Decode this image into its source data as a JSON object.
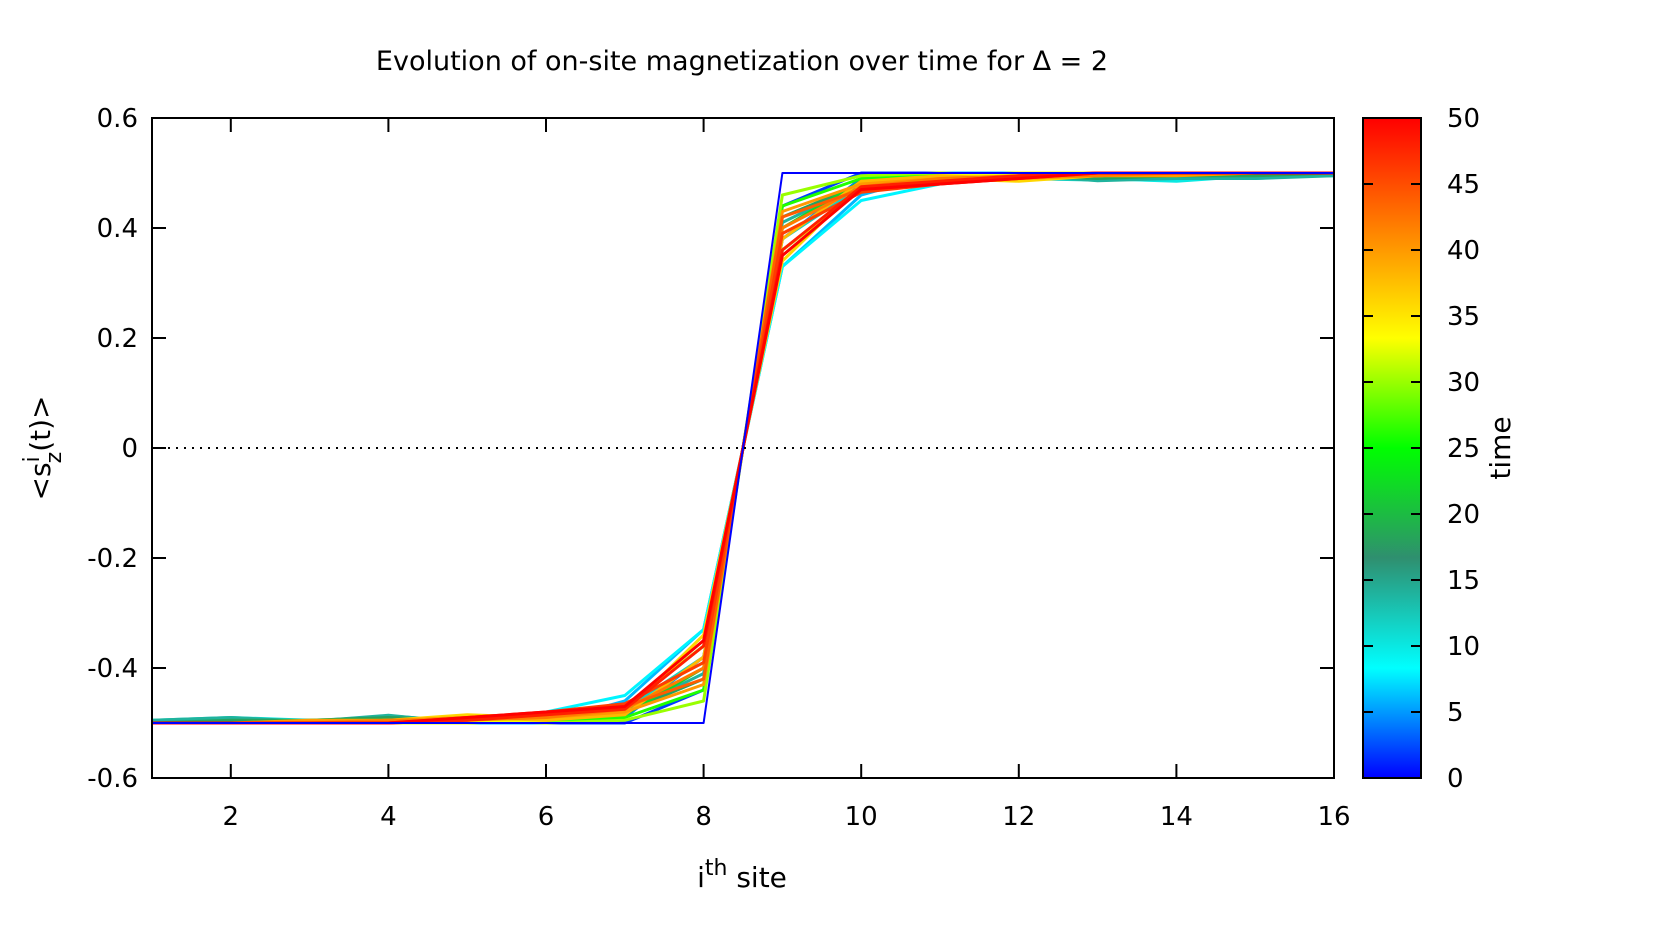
{
  "chart_data": {
    "type": "line",
    "title": "Evolution of on-site magnetization over time for Δ = 2",
    "xlabel": {
      "base": "i",
      "sup": "th",
      "rest": " site"
    },
    "ylabel": {
      "open": "<s",
      "sup": "i",
      "sub": "z",
      "close": "(t)>"
    },
    "xlim": [
      1,
      16
    ],
    "ylim": [
      -0.6,
      0.6
    ],
    "xticks": [
      2,
      4,
      6,
      8,
      10,
      12,
      14,
      16
    ],
    "yticks": [
      -0.6,
      -0.4,
      -0.2,
      0,
      0.2,
      0.4,
      0.6
    ],
    "xtick_labels": [
      "2",
      "4",
      "6",
      "8",
      "10",
      "12",
      "14",
      "16"
    ],
    "ytick_labels": [
      "-0.6",
      "-0.4",
      "-0.2",
      "0",
      "0.2",
      "0.4",
      "0.6"
    ],
    "zero_line": {
      "style": "dotted",
      "y": 0
    },
    "grid": false,
    "colorbar": {
      "label": "time",
      "range": [
        0,
        50
      ],
      "ticks": [
        0,
        5,
        10,
        15,
        20,
        25,
        30,
        35,
        40,
        45,
        50
      ],
      "tick_labels": [
        "0",
        "5",
        "10",
        "15",
        "20",
        "25",
        "30",
        "35",
        "40",
        "45",
        "50"
      ],
      "colors": [
        "#0000ff",
        "#00ffff",
        "#2f8f6f",
        "#00ff00",
        "#ffff00",
        "#ff8000",
        "#ff0000"
      ]
    },
    "x": [
      1,
      2,
      3,
      4,
      5,
      6,
      7,
      8,
      9,
      10,
      11,
      12,
      13,
      14,
      15,
      16
    ],
    "series": [
      {
        "time": 0,
        "values": [
          -0.5,
          -0.5,
          -0.5,
          -0.5,
          -0.5,
          -0.5,
          -0.5,
          -0.5,
          0.5,
          0.5,
          0.5,
          0.5,
          0.5,
          0.5,
          0.5,
          0.5
        ]
      },
      {
        "time": 2,
        "values": [
          -0.5,
          -0.5,
          -0.5,
          -0.5,
          -0.5,
          -0.5,
          -0.5,
          -0.44,
          0.44,
          0.5,
          0.5,
          0.5,
          0.5,
          0.5,
          0.5,
          0.5
        ]
      },
      {
        "time": 4,
        "values": [
          -0.5,
          -0.5,
          -0.5,
          -0.5,
          -0.5,
          -0.5,
          -0.49,
          -0.38,
          0.38,
          0.49,
          0.5,
          0.5,
          0.5,
          0.5,
          0.5,
          0.5
        ]
      },
      {
        "time": 6,
        "values": [
          -0.5,
          -0.5,
          -0.5,
          -0.5,
          -0.5,
          -0.5,
          -0.46,
          -0.33,
          0.33,
          0.46,
          0.5,
          0.5,
          0.5,
          0.5,
          0.5,
          0.5
        ]
      },
      {
        "time": 8,
        "values": [
          -0.5,
          -0.5,
          -0.5,
          -0.5,
          -0.5,
          -0.48,
          -0.45,
          -0.33,
          0.33,
          0.45,
          0.48,
          0.5,
          0.5,
          0.5,
          0.5,
          0.5
        ]
      },
      {
        "time": 10,
        "values": [
          -0.495,
          -0.49,
          -0.495,
          -0.49,
          -0.495,
          -0.49,
          -0.47,
          -0.36,
          0.36,
          0.47,
          0.49,
          0.495,
          0.49,
          0.485,
          0.495,
          0.495
        ]
      },
      {
        "time": 12,
        "values": [
          -0.497,
          -0.493,
          -0.497,
          -0.487,
          -0.497,
          -0.493,
          -0.475,
          -0.38,
          0.38,
          0.475,
          0.493,
          0.49,
          0.487,
          0.49,
          0.49,
          0.497
        ]
      },
      {
        "time": 14,
        "values": [
          -0.495,
          -0.49,
          -0.497,
          -0.486,
          -0.5,
          -0.49,
          -0.48,
          -0.41,
          0.41,
          0.48,
          0.49,
          0.497,
          0.486,
          0.49,
          0.49,
          0.495
        ]
      },
      {
        "time": 18,
        "values": [
          -0.5,
          -0.495,
          -0.495,
          -0.49,
          -0.495,
          -0.49,
          -0.48,
          -0.42,
          0.42,
          0.48,
          0.49,
          0.495,
          0.49,
          0.495,
          0.495,
          0.5
        ]
      },
      {
        "time": 22,
        "values": [
          -0.5,
          -0.5,
          -0.495,
          -0.495,
          -0.49,
          -0.495,
          -0.485,
          -0.4,
          0.4,
          0.485,
          0.495,
          0.49,
          0.495,
          0.495,
          0.5,
          0.5
        ]
      },
      {
        "time": 26,
        "values": [
          -0.5,
          -0.5,
          -0.5,
          -0.495,
          -0.5,
          -0.495,
          -0.49,
          -0.44,
          0.44,
          0.49,
          0.495,
          0.5,
          0.495,
          0.5,
          0.5,
          0.5
        ]
      },
      {
        "time": 30,
        "values": [
          -0.5,
          -0.5,
          -0.5,
          -0.5,
          -0.495,
          -0.5,
          -0.495,
          -0.46,
          0.46,
          0.495,
          0.5,
          0.495,
          0.5,
          0.5,
          0.5,
          0.5
        ]
      },
      {
        "time": 33,
        "values": [
          -0.5,
          -0.5,
          -0.5,
          -0.5,
          -0.5,
          -0.495,
          -0.47,
          -0.36,
          0.36,
          0.47,
          0.495,
          0.5,
          0.5,
          0.5,
          0.5,
          0.5
        ]
      },
      {
        "time": 36,
        "values": [
          -0.5,
          -0.5,
          -0.5,
          -0.495,
          -0.485,
          -0.49,
          -0.48,
          -0.34,
          0.34,
          0.48,
          0.49,
          0.485,
          0.495,
          0.5,
          0.5,
          0.5
        ]
      },
      {
        "time": 38,
        "values": [
          -0.5,
          -0.5,
          -0.5,
          -0.495,
          -0.49,
          -0.495,
          -0.485,
          -0.38,
          0.38,
          0.485,
          0.495,
          0.49,
          0.495,
          0.5,
          0.5,
          0.5
        ]
      },
      {
        "time": 40,
        "values": [
          -0.5,
          -0.5,
          -0.495,
          -0.495,
          -0.49,
          -0.49,
          -0.48,
          -0.43,
          0.43,
          0.48,
          0.49,
          0.49,
          0.495,
          0.495,
          0.5,
          0.5
        ]
      },
      {
        "time": 42,
        "values": [
          -0.5,
          -0.5,
          -0.5,
          -0.495,
          -0.495,
          -0.49,
          -0.475,
          -0.4,
          0.4,
          0.475,
          0.49,
          0.495,
          0.495,
          0.5,
          0.5,
          0.5
        ]
      },
      {
        "time": 44,
        "values": [
          -0.5,
          -0.5,
          -0.5,
          -0.5,
          -0.495,
          -0.485,
          -0.47,
          -0.42,
          0.42,
          0.47,
          0.485,
          0.495,
          0.5,
          0.5,
          0.5,
          0.5
        ]
      },
      {
        "time": 46,
        "values": [
          -0.5,
          -0.5,
          -0.5,
          -0.5,
          -0.49,
          -0.48,
          -0.465,
          -0.39,
          0.39,
          0.465,
          0.48,
          0.49,
          0.5,
          0.5,
          0.5,
          0.5
        ]
      },
      {
        "time": 48,
        "values": [
          -0.5,
          -0.5,
          -0.5,
          -0.5,
          -0.495,
          -0.485,
          -0.475,
          -0.36,
          0.36,
          0.475,
          0.485,
          0.495,
          0.5,
          0.5,
          0.5,
          0.5
        ]
      },
      {
        "time": 50,
        "values": [
          -0.5,
          -0.5,
          -0.5,
          -0.5,
          -0.49,
          -0.48,
          -0.47,
          -0.35,
          0.35,
          0.47,
          0.48,
          0.49,
          0.5,
          0.5,
          0.5,
          0.5
        ]
      }
    ]
  }
}
